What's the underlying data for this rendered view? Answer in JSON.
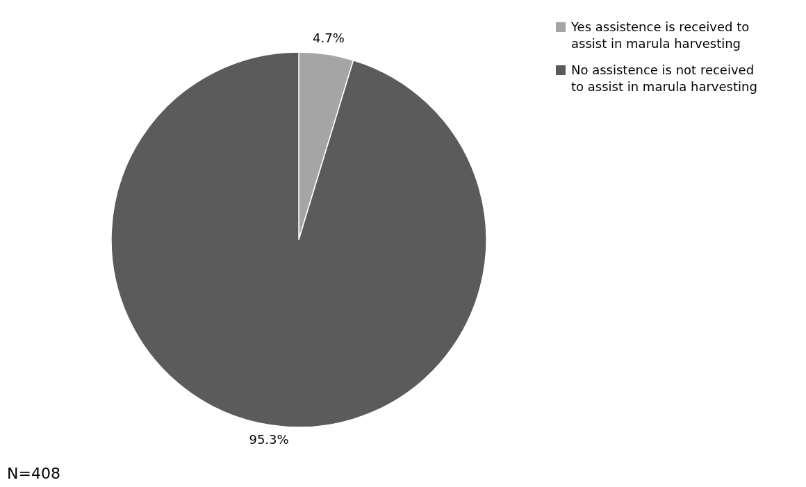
{
  "chart_data": {
    "type": "pie",
    "categories": [
      "Yes assistence is received to assist in marula harvesting",
      "No assistence is not received to assist in marula harvesting"
    ],
    "values": [
      4.7,
      95.3
    ],
    "colors": [
      "#a5a5a5",
      "#5b5b5b"
    ],
    "value_labels": [
      "4.7%",
      "95.3%"
    ],
    "legend": "top right",
    "annotations": [
      "N=408"
    ]
  }
}
